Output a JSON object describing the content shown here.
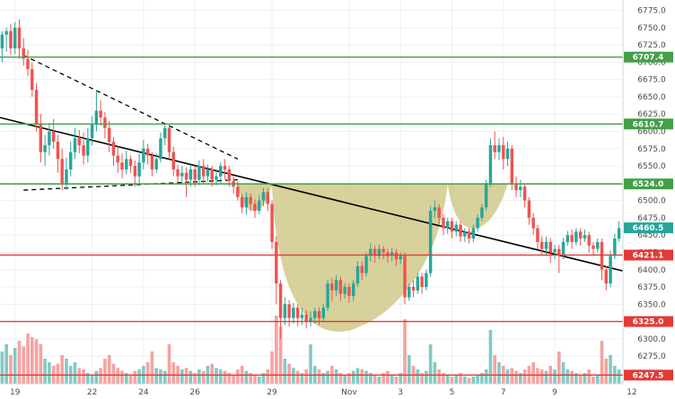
{
  "colors": {
    "up": "#26a69a",
    "down": "#ef5350",
    "vol_up": "#80cbc4",
    "vol_down": "#f5a3a2",
    "support": "#43a047",
    "resistance": "#e53935",
    "pattern_fill": "#c9c17a",
    "trend": "#000000"
  },
  "chart_data": {
    "type": "candlestick",
    "y_axis": {
      "min": 6235,
      "max": 6790,
      "ticks": [
        6250,
        6275,
        6300,
        6325,
        6350,
        6375,
        6400,
        6425,
        6450,
        6475,
        6500,
        6525,
        6550,
        6575,
        6600,
        6625,
        6650,
        6675,
        6700,
        6725,
        6750,
        6775
      ]
    },
    "x_axis": {
      "labels": [
        {
          "label": "19",
          "index": 3
        },
        {
          "label": "22",
          "index": 21
        },
        {
          "label": "24",
          "index": 33
        },
        {
          "label": "26",
          "index": 45
        },
        {
          "label": "29",
          "index": 63
        },
        {
          "label": "Nov",
          "index": 81
        },
        {
          "label": "3",
          "index": 93
        },
        {
          "label": "5",
          "index": 105
        },
        {
          "label": "7",
          "index": 117
        },
        {
          "label": "9",
          "index": 129
        },
        {
          "label": "12",
          "index": 147
        }
      ]
    },
    "levels": [
      {
        "value": 6707.4,
        "label": "6707.4",
        "kind": "support"
      },
      {
        "value": 6610.7,
        "label": "6610.7",
        "kind": "support"
      },
      {
        "value": 6524.0,
        "label": "6524.0",
        "kind": "support"
      },
      {
        "value": 6421.1,
        "label": "6421.1",
        "kind": "resistance"
      },
      {
        "value": 6325.0,
        "label": "6325.0",
        "kind": "resistance"
      },
      {
        "value": 6247.5,
        "label": "6247.5",
        "kind": "resistance"
      }
    ],
    "last_price": {
      "value": 6460.5,
      "label": "6460.5"
    },
    "candles": [
      [
        6720,
        6740,
        6700,
        6745
      ],
      [
        6740,
        6745,
        6715,
        6750
      ],
      [
        6745,
        6720,
        6710,
        6755
      ],
      [
        6720,
        6750,
        6712,
        6758
      ],
      [
        6750,
        6720,
        6705,
        6762
      ],
      [
        6720,
        6705,
        6695,
        6735
      ],
      [
        6705,
        6690,
        6680,
        6718
      ],
      [
        6690,
        6660,
        6650,
        6700
      ],
      [
        6660,
        6610,
        6600,
        6670
      ],
      [
        6610,
        6570,
        6555,
        6625
      ],
      [
        6570,
        6580,
        6550,
        6595
      ],
      [
        6580,
        6600,
        6565,
        6612
      ],
      [
        6600,
        6585,
        6575,
        6618
      ],
      [
        6585,
        6560,
        6540,
        6595
      ],
      [
        6560,
        6525,
        6515,
        6575
      ],
      [
        6525,
        6545,
        6515,
        6562
      ],
      [
        6545,
        6570,
        6535,
        6585
      ],
      [
        6570,
        6590,
        6560,
        6605
      ],
      [
        6590,
        6580,
        6568,
        6602
      ],
      [
        6580,
        6565,
        6552,
        6598
      ],
      [
        6565,
        6590,
        6555,
        6605
      ],
      [
        6590,
        6610,
        6580,
        6622
      ],
      [
        6610,
        6630,
        6600,
        6660
      ],
      [
        6630,
        6620,
        6608,
        6645
      ],
      [
        6620,
        6605,
        6590,
        6628
      ],
      [
        6605,
        6585,
        6570,
        6615
      ],
      [
        6585,
        6565,
        6550,
        6592
      ],
      [
        6565,
        6555,
        6540,
        6578
      ],
      [
        6555,
        6545,
        6532,
        6568
      ],
      [
        6545,
        6560,
        6538,
        6572
      ],
      [
        6560,
        6550,
        6540,
        6565
      ],
      [
        6550,
        6535,
        6520,
        6558
      ],
      [
        6535,
        6555,
        6525,
        6568
      ],
      [
        6555,
        6575,
        6545,
        6588
      ],
      [
        6575,
        6565,
        6552,
        6582
      ],
      [
        6565,
        6545,
        6535,
        6570
      ],
      [
        6545,
        6560,
        6540,
        6568
      ],
      [
        6560,
        6590,
        6555,
        6598
      ],
      [
        6590,
        6605,
        6580,
        6612
      ],
      [
        6605,
        6570,
        6560,
        6610
      ],
      [
        6570,
        6545,
        6535,
        6578
      ],
      [
        6545,
        6535,
        6525,
        6552
      ],
      [
        6535,
        6540,
        6525,
        6550
      ],
      [
        6540,
        6530,
        6505,
        6548
      ],
      [
        6530,
        6545,
        6520,
        6552
      ],
      [
        6545,
        6530,
        6520,
        6550
      ],
      [
        6530,
        6550,
        6522,
        6558
      ],
      [
        6550,
        6535,
        6525,
        6560
      ],
      [
        6535,
        6545,
        6528,
        6552
      ],
      [
        6545,
        6530,
        6520,
        6550
      ],
      [
        6530,
        6535,
        6522,
        6545
      ],
      [
        6535,
        6550,
        6525,
        6555
      ],
      [
        6550,
        6545,
        6530,
        6560
      ],
      [
        6545,
        6528,
        6520,
        6550
      ],
      [
        6528,
        6520,
        6510,
        6535
      ],
      [
        6520,
        6505,
        6500,
        6528
      ],
      [
        6505,
        6490,
        6482,
        6510
      ],
      [
        6490,
        6505,
        6480,
        6512
      ],
      [
        6505,
        6495,
        6485,
        6510
      ],
      [
        6495,
        6485,
        6475,
        6502
      ],
      [
        6485,
        6500,
        6480,
        6508
      ],
      [
        6500,
        6512,
        6492,
        6518
      ],
      [
        6512,
        6495,
        6485,
        6518
      ],
      [
        6495,
        6440,
        6430,
        6500
      ],
      [
        6440,
        6380,
        6350,
        6448
      ],
      [
        6380,
        6330,
        6300,
        6385
      ],
      [
        6330,
        6350,
        6320,
        6360
      ],
      [
        6350,
        6330,
        6318,
        6356
      ],
      [
        6330,
        6345,
        6322,
        6352
      ],
      [
        6345,
        6330,
        6318,
        6350
      ],
      [
        6330,
        6335,
        6320,
        6345
      ],
      [
        6335,
        6325,
        6315,
        6342
      ],
      [
        6325,
        6330,
        6318,
        6340
      ],
      [
        6330,
        6340,
        6322,
        6345
      ],
      [
        6340,
        6330,
        6320,
        6345
      ],
      [
        6330,
        6345,
        6325,
        6350
      ],
      [
        6345,
        6380,
        6340,
        6385
      ],
      [
        6380,
        6370,
        6355,
        6388
      ],
      [
        6370,
        6385,
        6362,
        6392
      ],
      [
        6385,
        6365,
        6355,
        6390
      ],
      [
        6365,
        6375,
        6358,
        6380
      ],
      [
        6375,
        6362,
        6352,
        6380
      ],
      [
        6362,
        6380,
        6355,
        6385
      ],
      [
        6380,
        6405,
        6375,
        6412
      ],
      [
        6405,
        6395,
        6385,
        6412
      ],
      [
        6395,
        6420,
        6390,
        6425
      ],
      [
        6420,
        6430,
        6412,
        6438
      ],
      [
        6430,
        6420,
        6410,
        6435
      ],
      [
        6420,
        6430,
        6415,
        6436
      ],
      [
        6430,
        6425,
        6415,
        6434
      ],
      [
        6425,
        6420,
        6410,
        6430
      ],
      [
        6420,
        6425,
        6412,
        6432
      ],
      [
        6425,
        6415,
        6405,
        6430
      ],
      [
        6415,
        6420,
        6408,
        6425
      ],
      [
        6420,
        6360,
        6350,
        6425
      ],
      [
        6360,
        6375,
        6355,
        6380
      ],
      [
        6375,
        6370,
        6360,
        6385
      ],
      [
        6370,
        6390,
        6365,
        6395
      ],
      [
        6390,
        6375,
        6365,
        6395
      ],
      [
        6375,
        6395,
        6370,
        6400
      ],
      [
        6395,
        6485,
        6390,
        6492
      ],
      [
        6485,
        6490,
        6475,
        6500
      ],
      [
        6490,
        6475,
        6465,
        6495
      ],
      [
        6475,
        6460,
        6450,
        6480
      ],
      [
        6460,
        6470,
        6452,
        6475
      ],
      [
        6470,
        6455,
        6445,
        6475
      ],
      [
        6455,
        6465,
        6448,
        6470
      ],
      [
        6465,
        6448,
        6440,
        6470
      ],
      [
        6448,
        6455,
        6440,
        6460
      ],
      [
        6455,
        6445,
        6438,
        6460
      ],
      [
        6445,
        6460,
        6440,
        6465
      ],
      [
        6460,
        6475,
        6455,
        6480
      ],
      [
        6475,
        6490,
        6470,
        6495
      ],
      [
        6490,
        6525,
        6485,
        6530
      ],
      [
        6525,
        6580,
        6520,
        6590
      ],
      [
        6580,
        6570,
        6560,
        6600
      ],
      [
        6570,
        6580,
        6558,
        6590
      ],
      [
        6580,
        6560,
        6545,
        6592
      ],
      [
        6560,
        6575,
        6550,
        6585
      ],
      [
        6575,
        6525,
        6515,
        6580
      ],
      [
        6525,
        6515,
        6505,
        6535
      ],
      [
        6515,
        6520,
        6505,
        6530
      ],
      [
        6520,
        6500,
        6490,
        6525
      ],
      [
        6500,
        6475,
        6465,
        6505
      ],
      [
        6475,
        6460,
        6450,
        6482
      ],
      [
        6460,
        6440,
        6430,
        6465
      ],
      [
        6440,
        6430,
        6420,
        6448
      ],
      [
        6430,
        6440,
        6420,
        6448
      ],
      [
        6440,
        6425,
        6410,
        6446
      ],
      [
        6425,
        6430,
        6415,
        6436
      ],
      [
        6430,
        6420,
        6395,
        6436
      ],
      [
        6420,
        6440,
        6415,
        6446
      ],
      [
        6440,
        6450,
        6435,
        6456
      ],
      [
        6450,
        6440,
        6430,
        6458
      ],
      [
        6440,
        6455,
        6435,
        6460
      ],
      [
        6455,
        6445,
        6435,
        6460
      ],
      [
        6445,
        6450,
        6440,
        6458
      ],
      [
        6450,
        6435,
        6425,
        6455
      ],
      [
        6435,
        6430,
        6420,
        6440
      ],
      [
        6430,
        6440,
        6425,
        6445
      ],
      [
        6440,
        6400,
        6385,
        6445
      ],
      [
        6400,
        6380,
        6370,
        6405
      ],
      [
        6380,
        6420,
        6375,
        6428
      ],
      [
        6420,
        6445,
        6415,
        6452
      ],
      [
        6445,
        6460,
        6440,
        6470
      ]
    ],
    "volumes": [
      0.45,
      0.55,
      0.4,
      0.5,
      0.6,
      0.52,
      0.7,
      0.65,
      0.62,
      0.55,
      0.35,
      0.3,
      0.25,
      0.28,
      0.4,
      0.35,
      0.25,
      0.3,
      0.22,
      0.2,
      0.15,
      0.12,
      0.18,
      0.22,
      0.35,
      0.4,
      0.28,
      0.22,
      0.18,
      0.15,
      0.12,
      0.18,
      0.2,
      0.25,
      0.3,
      0.45,
      0.22,
      0.2,
      0.18,
      0.55,
      0.3,
      0.25,
      0.2,
      0.22,
      0.18,
      0.15,
      0.2,
      0.18,
      0.25,
      0.28,
      0.22,
      0.2,
      0.18,
      0.15,
      0.12,
      0.2,
      0.25,
      0.18,
      0.15,
      0.12,
      0.1,
      0.15,
      0.2,
      0.45,
      0.95,
      0.8,
      0.35,
      0.28,
      0.22,
      0.18,
      0.15,
      0.2,
      0.55,
      0.25,
      0.2,
      0.15,
      0.18,
      0.25,
      0.2,
      0.15,
      0.12,
      0.15,
      0.18,
      0.22,
      0.2,
      0.18,
      0.15,
      0.12,
      0.1,
      0.15,
      0.18,
      0.12,
      0.1,
      0.15,
      0.9,
      0.4,
      0.25,
      0.2,
      0.15,
      0.18,
      0.55,
      0.3,
      0.2,
      0.15,
      0.12,
      0.1,
      0.12,
      0.15,
      0.1,
      0.08,
      0.1,
      0.12,
      0.15,
      0.2,
      0.75,
      0.4,
      0.3,
      0.25,
      0.2,
      0.22,
      0.18,
      0.15,
      0.2,
      0.25,
      0.3,
      0.22,
      0.2,
      0.18,
      0.25,
      0.2,
      0.45,
      0.3,
      0.2,
      0.18,
      0.15,
      0.12,
      0.15,
      0.2,
      0.1,
      0.12,
      0.6,
      0.35,
      0.4,
      0.25,
      0.2
    ]
  }
}
